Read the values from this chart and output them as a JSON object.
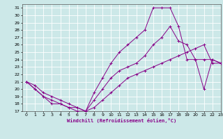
{
  "xlabel": "Windchill (Refroidissement éolien,°C)",
  "bg_color": "#cce8e8",
  "grid_color": "#ffffff",
  "line_color": "#880088",
  "xlim": [
    -0.5,
    23
  ],
  "ylim": [
    17,
    31.5
  ],
  "xticks": [
    0,
    1,
    2,
    3,
    4,
    5,
    6,
    7,
    8,
    9,
    10,
    11,
    12,
    13,
    14,
    15,
    16,
    17,
    18,
    19,
    20,
    21,
    22,
    23
  ],
  "yticks": [
    17,
    18,
    19,
    20,
    21,
    22,
    23,
    24,
    25,
    26,
    27,
    28,
    29,
    30,
    31
  ],
  "series": [
    {
      "x": [
        0,
        1,
        2,
        3,
        4,
        5,
        6,
        7,
        8,
        9,
        10,
        11,
        12,
        13,
        14,
        15,
        16,
        17,
        18,
        19,
        20,
        21,
        22,
        23
      ],
      "y": [
        21,
        20,
        19,
        18,
        18,
        17.5,
        17,
        17,
        19.5,
        21.5,
        23.5,
        25,
        26,
        27,
        28,
        31,
        31,
        31,
        28.5,
        24,
        24,
        24,
        24,
        23.5
      ]
    },
    {
      "x": [
        0,
        1,
        2,
        3,
        4,
        5,
        6,
        7,
        8,
        9,
        10,
        11,
        12,
        13,
        14,
        15,
        16,
        17,
        18,
        19,
        20,
        21,
        22,
        23
      ],
      "y": [
        21,
        20,
        19,
        18.5,
        18,
        17.5,
        17.5,
        17,
        18.5,
        20,
        21.5,
        22.5,
        23,
        23.5,
        24.5,
        26,
        27,
        28.5,
        26.5,
        26,
        24,
        20,
        24,
        23.5
      ]
    },
    {
      "x": [
        0,
        1,
        2,
        3,
        4,
        5,
        6,
        7,
        8,
        9,
        10,
        11,
        12,
        13,
        14,
        15,
        16,
        17,
        18,
        19,
        20,
        21,
        22,
        23
      ],
      "y": [
        21,
        20.5,
        19.5,
        19,
        18.5,
        18,
        17.5,
        17,
        17.5,
        18.5,
        19.5,
        20.5,
        21.5,
        22,
        22.5,
        23,
        23.5,
        24,
        24.5,
        25,
        25.5,
        26,
        23.5,
        23.5
      ]
    }
  ]
}
